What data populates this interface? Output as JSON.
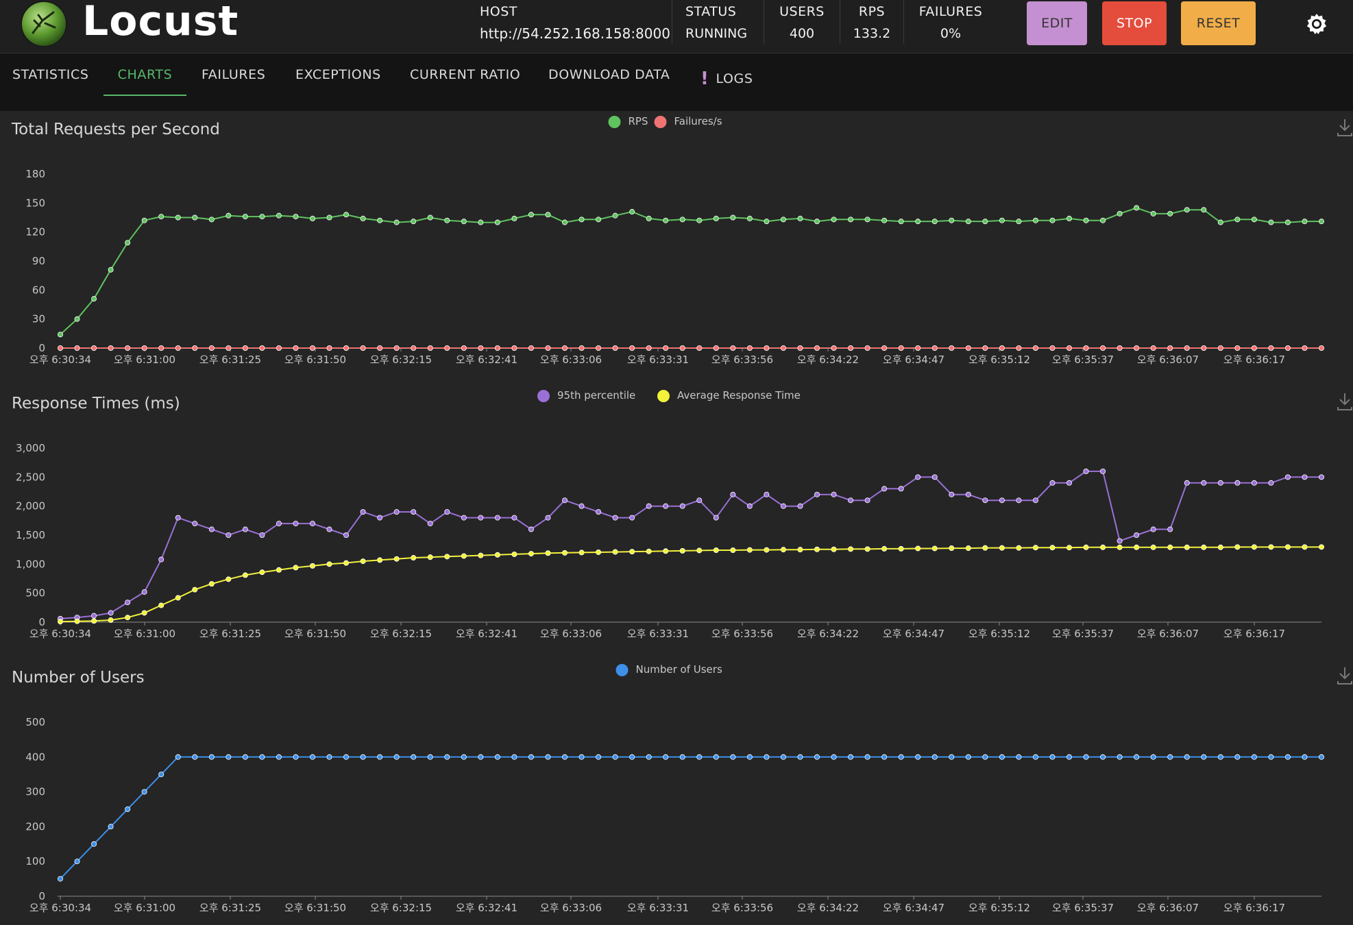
{
  "app": {
    "name": "Locust",
    "host_label": "HOST",
    "host_value": "http://54.252.168.158:8000",
    "status_label": "STATUS",
    "status_value": "RUNNING",
    "users_label": "USERS",
    "users_value": "400",
    "rps_label": "RPS",
    "rps_value": "133.2",
    "failures_label": "FAILURES",
    "failures_value": "0%",
    "edit_label": "EDIT",
    "stop_label": "STOP",
    "reset_label": "RESET"
  },
  "tabs": [
    {
      "label": "STATISTICS",
      "active": false
    },
    {
      "label": "CHARTS",
      "active": true
    },
    {
      "label": "FAILURES",
      "active": false
    },
    {
      "label": "EXCEPTIONS",
      "active": false
    },
    {
      "label": "CURRENT RATIO",
      "active": false
    },
    {
      "label": "DOWNLOAD DATA",
      "active": false
    },
    {
      "label": "LOGS",
      "active": false
    }
  ],
  "colors": {
    "rps": "#5fc35f",
    "failures": "#f07373",
    "p95": "#9a70d6",
    "avg": "#f2f23a",
    "users": "#3d8fe8",
    "edit": "#c490d1",
    "stop": "#e44d3b",
    "reset": "#f1ad48",
    "active_tab": "#59b86a"
  },
  "chart_data": [
    {
      "type": "line",
      "title": "Total Requests per Second",
      "xlabel": "",
      "ylabel": "",
      "x_ticks": [
        "오후 6:30:34",
        "오후 6:31:00",
        "오후 6:31:25",
        "오후 6:31:50",
        "오후 6:32:15",
        "오후 6:32:41",
        "오후 6:33:06",
        "오후 6:33:31",
        "오후 6:33:56",
        "오후 6:34:22",
        "오후 6:34:47",
        "오후 6:35:12",
        "오후 6:35:37",
        "오후 6:36:07",
        "오후 6:36:17"
      ],
      "ylim": [
        0,
        180
      ],
      "y_ticks": [
        "0",
        "30",
        "60",
        "90",
        "120",
        "150",
        "180"
      ],
      "grid": false,
      "legend": "top-center",
      "series": [
        {
          "name": "RPS",
          "color": "#5fc35f",
          "values": [
            14,
            30,
            51,
            81,
            109,
            132,
            136,
            135,
            135,
            133,
            137,
            136,
            136,
            137,
            136,
            134,
            135,
            138,
            134,
            132,
            130,
            131,
            135,
            132,
            131,
            130,
            130,
            134,
            138,
            138,
            130,
            133,
            133,
            137,
            141,
            134,
            132,
            133,
            132,
            134,
            135,
            134,
            131,
            133,
            134,
            131,
            133,
            133,
            133,
            132,
            131,
            131,
            131,
            132,
            131,
            131,
            132,
            131,
            132,
            132,
            134,
            132,
            132,
            139,
            145,
            139,
            139,
            143,
            143,
            130,
            133,
            133,
            130,
            130,
            131,
            131
          ]
        },
        {
          "name": "Failures/s",
          "color": "#f07373",
          "values": [
            0,
            0,
            0,
            0,
            0,
            0,
            0,
            0,
            0,
            0,
            0,
            0,
            0,
            0,
            0,
            0,
            0,
            0,
            0,
            0,
            0,
            0,
            0,
            0,
            0,
            0,
            0,
            0,
            0,
            0,
            0,
            0,
            0,
            0,
            0,
            0,
            0,
            0,
            0,
            0,
            0,
            0,
            0,
            0,
            0,
            0,
            0,
            0,
            0,
            0,
            0,
            0,
            0,
            0,
            0,
            0,
            0,
            0,
            0,
            0,
            0,
            0,
            0,
            0,
            0,
            0,
            0,
            0,
            0,
            0,
            0,
            0,
            0,
            0,
            0,
            0
          ]
        }
      ]
    },
    {
      "type": "line",
      "title": "Response Times (ms)",
      "xlabel": "",
      "ylabel": "",
      "x_ticks": [
        "오후 6:30:34",
        "오후 6:31:00",
        "오후 6:31:25",
        "오후 6:31:50",
        "오후 6:32:15",
        "오후 6:32:41",
        "오후 6:33:06",
        "오후 6:33:31",
        "오후 6:33:56",
        "오후 6:34:22",
        "오후 6:34:47",
        "오후 6:35:12",
        "오후 6:35:37",
        "오후 6:36:07",
        "오후 6:36:17"
      ],
      "ylim": [
        0,
        3000
      ],
      "y_ticks": [
        "0",
        "500",
        "1,000",
        "1,500",
        "2,000",
        "2,500",
        "3,000"
      ],
      "grid": false,
      "legend": "top-center",
      "series": [
        {
          "name": "95th percentile",
          "color": "#9a70d6",
          "values": [
            60,
            80,
            110,
            160,
            340,
            520,
            1080,
            1800,
            1700,
            1600,
            1500,
            1600,
            1500,
            1700,
            1700,
            1700,
            1600,
            1500,
            1900,
            1800,
            1900,
            1900,
            1700,
            1900,
            1800,
            1800,
            1800,
            1800,
            1600,
            1800,
            2100,
            2000,
            1900,
            1800,
            1800,
            2000,
            2000,
            2000,
            2100,
            1800,
            2200,
            2000,
            2200,
            2000,
            2000,
            2200,
            2200,
            2100,
            2100,
            2300,
            2300,
            2500,
            2500,
            2200,
            2200,
            2100,
            2100,
            2100,
            2100,
            2400,
            2400,
            2600,
            2600,
            1400,
            1500,
            1600,
            1600,
            2400,
            2400,
            2400,
            2400,
            2400,
            2400,
            2500,
            2500,
            2500
          ]
        },
        {
          "name": "Average Response Time",
          "color": "#f2f23a",
          "values": [
            10,
            15,
            20,
            35,
            80,
            160,
            290,
            420,
            560,
            660,
            740,
            810,
            860,
            900,
            940,
            970,
            1000,
            1020,
            1050,
            1070,
            1090,
            1110,
            1120,
            1130,
            1140,
            1150,
            1160,
            1170,
            1180,
            1190,
            1195,
            1200,
            1205,
            1210,
            1215,
            1220,
            1225,
            1230,
            1235,
            1240,
            1240,
            1245,
            1245,
            1250,
            1250,
            1255,
            1255,
            1260,
            1260,
            1265,
            1265,
            1270,
            1270,
            1275,
            1275,
            1280,
            1280,
            1280,
            1285,
            1285,
            1285,
            1290,
            1290,
            1290,
            1290,
            1290,
            1290,
            1290,
            1290,
            1290,
            1295,
            1295,
            1295,
            1295,
            1295,
            1295
          ]
        }
      ]
    },
    {
      "type": "line",
      "title": "Number of Users",
      "xlabel": "",
      "ylabel": "",
      "x_ticks": [
        "오후 6:30:34",
        "오후 6:31:00",
        "오후 6:31:25",
        "오후 6:31:50",
        "오후 6:32:15",
        "오후 6:32:41",
        "오후 6:33:06",
        "오후 6:33:31",
        "오후 6:33:56",
        "오후 6:34:22",
        "오후 6:34:47",
        "오후 6:35:12",
        "오후 6:35:37",
        "오후 6:36:07",
        "오후 6:36:17"
      ],
      "ylim": [
        0,
        500
      ],
      "y_ticks": [
        "0",
        "100",
        "200",
        "300",
        "400",
        "500"
      ],
      "grid": false,
      "legend": "top-center",
      "series": [
        {
          "name": "Number of Users",
          "color": "#3d8fe8",
          "values": [
            50,
            100,
            150,
            200,
            250,
            300,
            350,
            400,
            400,
            400,
            400,
            400,
            400,
            400,
            400,
            400,
            400,
            400,
            400,
            400,
            400,
            400,
            400,
            400,
            400,
            400,
            400,
            400,
            400,
            400,
            400,
            400,
            400,
            400,
            400,
            400,
            400,
            400,
            400,
            400,
            400,
            400,
            400,
            400,
            400,
            400,
            400,
            400,
            400,
            400,
            400,
            400,
            400,
            400,
            400,
            400,
            400,
            400,
            400,
            400,
            400,
            400,
            400,
            400,
            400,
            400,
            400,
            400,
            400,
            400,
            400,
            400,
            400,
            400,
            400,
            400
          ]
        }
      ]
    }
  ]
}
